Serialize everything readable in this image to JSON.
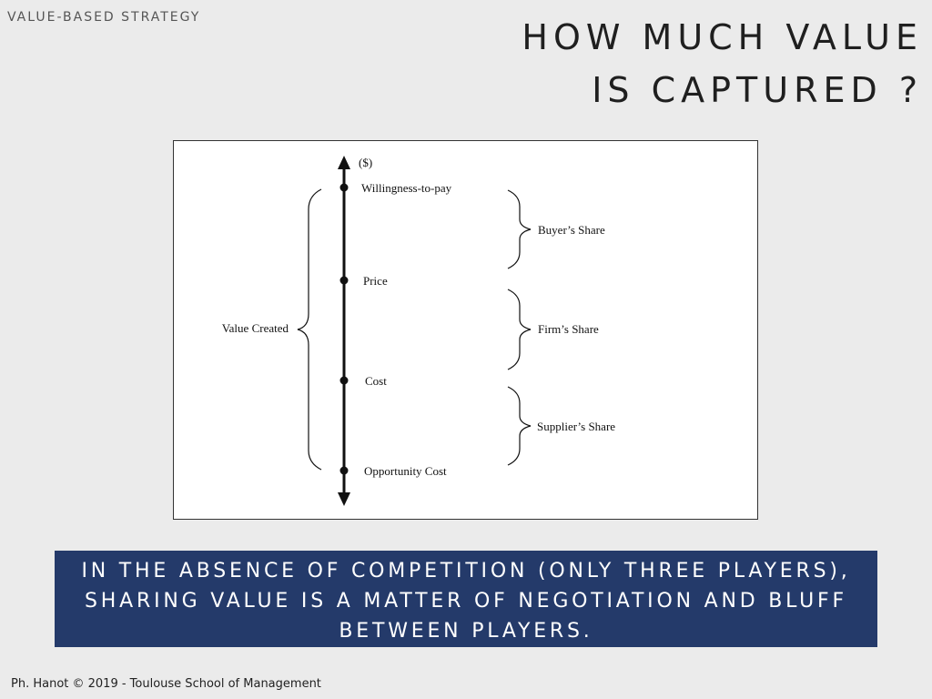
{
  "header": {
    "section_label": "VALUE-BASED STRATEGY",
    "title_line1": "HOW MUCH VALUE",
    "title_line2": "IS CAPTURED ?"
  },
  "diagram": {
    "axis_unit": "($)",
    "points": [
      {
        "label": "Willingness-to-pay"
      },
      {
        "label": "Price"
      },
      {
        "label": "Cost"
      },
      {
        "label": "Opportunity Cost"
      }
    ],
    "value_created_label": "Value Created",
    "shares": [
      {
        "label": "Buyer’s Share"
      },
      {
        "label": "Firm’s Share"
      },
      {
        "label": "Supplier’s Share"
      }
    ]
  },
  "banner": {
    "text": "IN THE ABSENCE OF COMPETITION (ONLY THREE PLAYERS), SHARING VALUE IS A MATTER OF NEGOTIATION AND BLUFF BETWEEN PLAYERS."
  },
  "footer": {
    "text": "Ph. Hanot © 2019  -  Toulouse School of Management"
  }
}
